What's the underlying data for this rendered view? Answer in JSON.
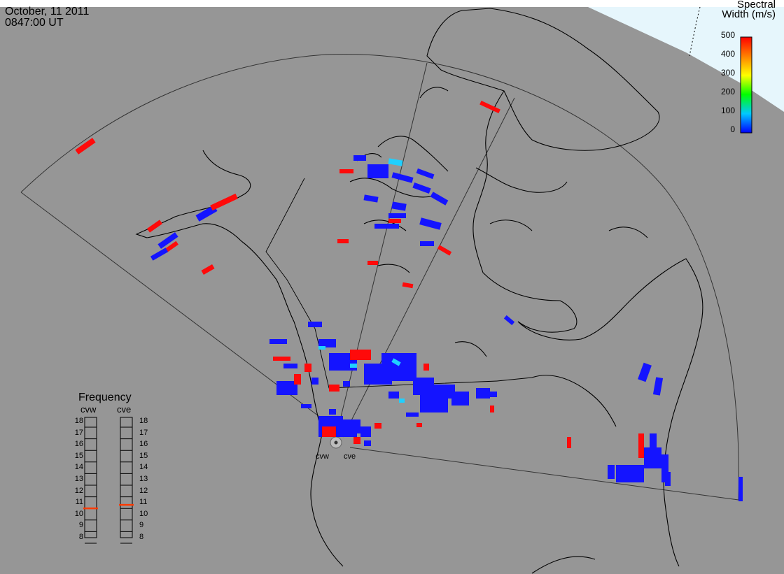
{
  "header": {
    "date": "October, 11 2011",
    "time": "0847:00 UT"
  },
  "colorbar": {
    "title_line1": "Spectral",
    "title_line2": "Width (m/s)",
    "ticks": [
      "500",
      "400",
      "300",
      "200",
      "100",
      "0"
    ],
    "range": [
      0,
      500
    ],
    "colors": [
      "#0000ff",
      "#00c8ff",
      "#00ff00",
      "#ffff00",
      "#ff8000",
      "#ff0000"
    ]
  },
  "frequency_panel": {
    "title": "Frequency",
    "columns": [
      {
        "name": "cvw",
        "value": 10.6
      },
      {
        "name": "cve",
        "value": 10.9
      }
    ],
    "ticks": [
      "18",
      "17",
      "16",
      "15",
      "14",
      "13",
      "12",
      "11",
      "10",
      "9",
      "8"
    ]
  },
  "radars": [
    {
      "name": "cvw"
    },
    {
      "name": "cve"
    }
  ],
  "colors": {
    "background": "#969696",
    "land_line": "#000000",
    "scatter_low": "#1414ff",
    "scatter_high": "#ff0a0a",
    "scatter_mid": "#20d0ff",
    "daylight": "#e6f6fc"
  }
}
